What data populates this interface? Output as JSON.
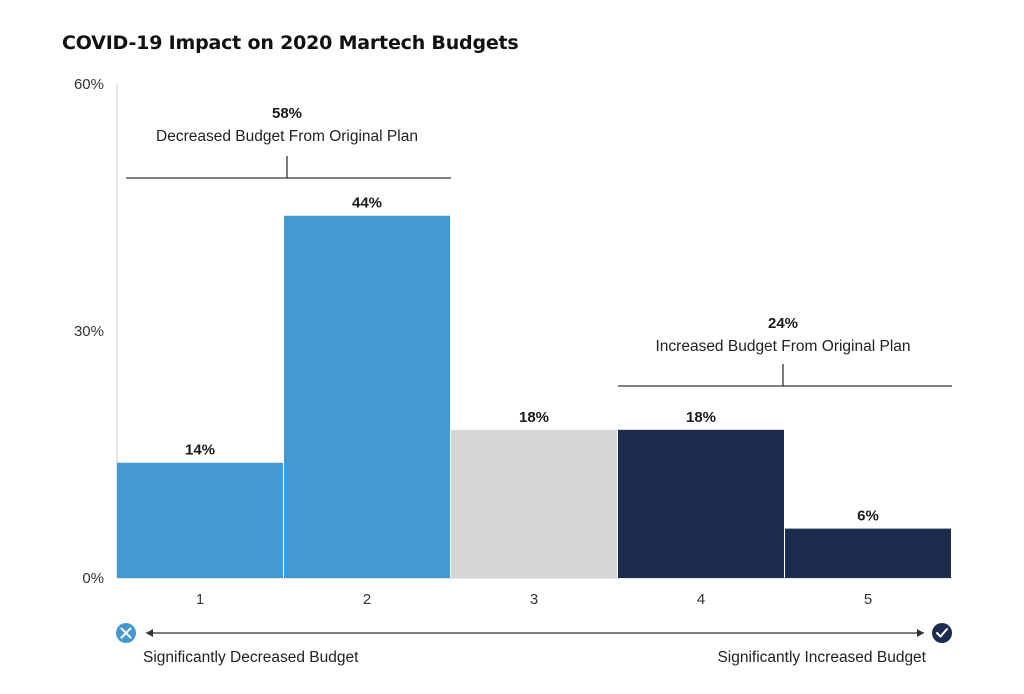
{
  "chart_data": {
    "type": "bar",
    "title": "COVID-19 Impact on 2020 Martech Budgets",
    "categories": [
      "1",
      "2",
      "3",
      "4",
      "5"
    ],
    "values": [
      14,
      44,
      18,
      18,
      6
    ],
    "value_labels": [
      "14%",
      "44%",
      "18%",
      "18%",
      "6%"
    ],
    "bar_colors": [
      "#4599d1",
      "#4599d1",
      "#d6d6d6",
      "#1b2c4f",
      "#1b2c4f"
    ],
    "ylim": [
      0,
      60
    ],
    "yticks": [
      0,
      30,
      60
    ],
    "ytick_labels": [
      "0%",
      "30%",
      "60%"
    ],
    "grid": false,
    "groups": [
      {
        "value_label": "58%",
        "label": "Decreased Budget From Original Plan",
        "from": 1,
        "to": 2
      },
      {
        "value_label": "24%",
        "label": "Increased Budget From Original Plan",
        "from": 4,
        "to": 5
      }
    ],
    "scale": {
      "left_label": "Significantly Decreased Budget",
      "right_label": "Significantly Increased Budget",
      "left_icon": "x-circle-icon",
      "right_icon": "check-circle-icon",
      "left_icon_color": "#4599d1",
      "right_icon_color": "#1b2c4f"
    }
  }
}
